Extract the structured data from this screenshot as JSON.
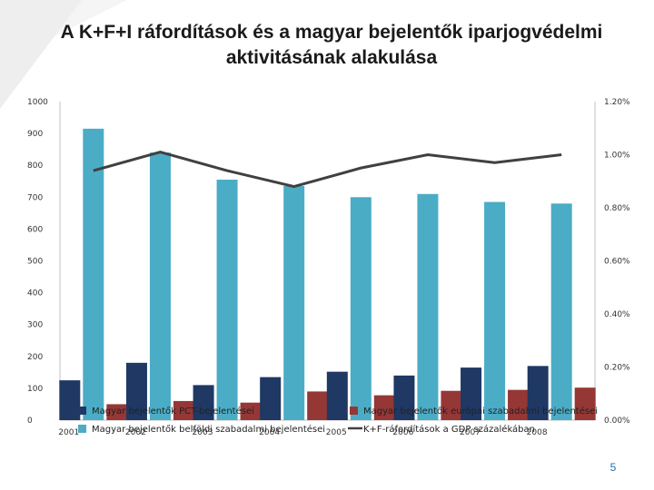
{
  "title": "A K+F+I ráfordítások és a magyar bejelentők iparjogvédelmi\naktivitásának alakulása",
  "page_number": "5",
  "chart_data": {
    "type": "bar",
    "title": "A K+F+I ráfordítások és a magyar bejelentők iparjogvédelmi aktivitásának alakulása",
    "categories": [
      "2001",
      "2002",
      "2003",
      "2004",
      "2005",
      "2006",
      "2007",
      "2008"
    ],
    "left_axis": {
      "range": [
        0,
        1000
      ],
      "ticks": [
        "0",
        "100",
        "200",
        "300",
        "400",
        "500",
        "600",
        "700",
        "800",
        "900",
        "1000"
      ]
    },
    "right_axis": {
      "range": [
        0,
        1.2
      ],
      "ticks": [
        "0.00%",
        "0.20%",
        "0.40%",
        "0.60%",
        "0.80%",
        "1.00%",
        "1.20%"
      ]
    },
    "series": [
      {
        "name": "Magyar bejelentők PCT-bejelentései",
        "type": "bar",
        "axis": "left",
        "color": "#1f3864",
        "values": [
          125,
          180,
          110,
          135,
          152,
          140,
          165,
          170
        ]
      },
      {
        "name": "Magyar bejelentők belföldi szabadalmi bejelentései",
        "type": "bar",
        "axis": "left",
        "color": "#4bacc6",
        "values": [
          915,
          840,
          755,
          735,
          700,
          710,
          685,
          680
        ]
      },
      {
        "name": "Magyar bejelentők európai szabadalmi bejelentései",
        "type": "bar",
        "axis": "left",
        "color": "#953735",
        "values": [
          50,
          60,
          55,
          90,
          78,
          92,
          95,
          102
        ]
      },
      {
        "name": "K+F-ráfordítások a GDP százalékában",
        "type": "line",
        "axis": "right",
        "color": "#404040",
        "values": [
          0.94,
          1.01,
          0.94,
          0.88,
          0.95,
          1.0,
          0.97,
          1.0
        ]
      }
    ],
    "legend_position": "bottom",
    "grid": false
  }
}
